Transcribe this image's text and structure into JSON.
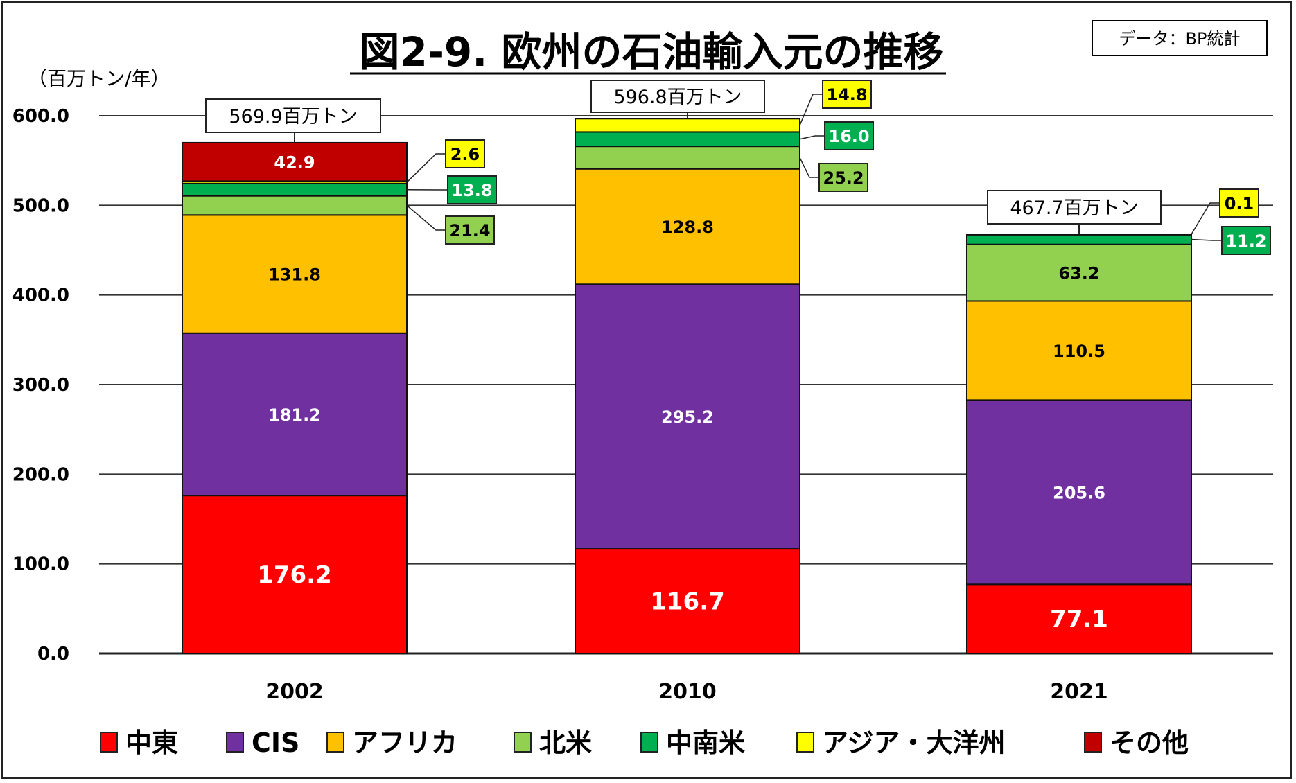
{
  "chart_data": {
    "type": "bar",
    "stacked": true,
    "title": "図2-9. 欧州の石油輸入元の推移",
    "source_note": "データ：BP統計",
    "ylabel": "（百万トン/年）",
    "xlabel": "",
    "ylim": [
      0,
      600
    ],
    "yticks": [
      0,
      100,
      200,
      300,
      400,
      500,
      600
    ],
    "ytick_labels": [
      "0.0",
      "100.0",
      "200.0",
      "300.0",
      "400.0",
      "500.0",
      "600.0"
    ],
    "grid": true,
    "legend_position": "bottom",
    "categories": [
      "2002",
      "2010",
      "2021"
    ],
    "totals": [
      569.9,
      596.8,
      467.7
    ],
    "total_labels": [
      "569.9百万トン",
      "596.8百万トン",
      "467.7百万トン"
    ],
    "series": [
      {
        "name": "中東",
        "color": "#FF0000",
        "label_color": "#FFFFFF",
        "values": [
          176.2,
          116.7,
          77.1
        ]
      },
      {
        "name": "CIS",
        "color": "#7030A0",
        "label_color": "#FFFFFF",
        "values": [
          181.2,
          295.2,
          205.6
        ]
      },
      {
        "name": "アフリカ",
        "color": "#FFC000",
        "label_color": "#000000",
        "values": [
          131.8,
          128.8,
          110.5
        ]
      },
      {
        "name": "北米",
        "color": "#92D050",
        "label_color": "#000000",
        "values": [
          21.4,
          25.2,
          63.2
        ]
      },
      {
        "name": "中南米",
        "color": "#00B050",
        "label_color": "#FFFFFF",
        "values": [
          13.8,
          16.0,
          11.2
        ]
      },
      {
        "name": "アジア・大洋州",
        "color": "#FFFF00",
        "label_color": "#000000",
        "values": [
          2.6,
          14.8,
          0.1
        ]
      },
      {
        "name": "その他",
        "color": "#C00000",
        "label_color": "#FFFFFF",
        "values": [
          42.9,
          0,
          0
        ]
      }
    ],
    "data_labels": [
      [
        "176.2",
        "181.2",
        "131.8",
        "21.4",
        "13.8",
        "2.6",
        "42.9"
      ],
      [
        "116.7",
        "295.2",
        "128.8",
        "25.2",
        "16.0",
        "14.8",
        ""
      ],
      [
        "77.1",
        "205.6",
        "110.5",
        "63.2",
        "11.2",
        "0.1",
        ""
      ]
    ]
  }
}
